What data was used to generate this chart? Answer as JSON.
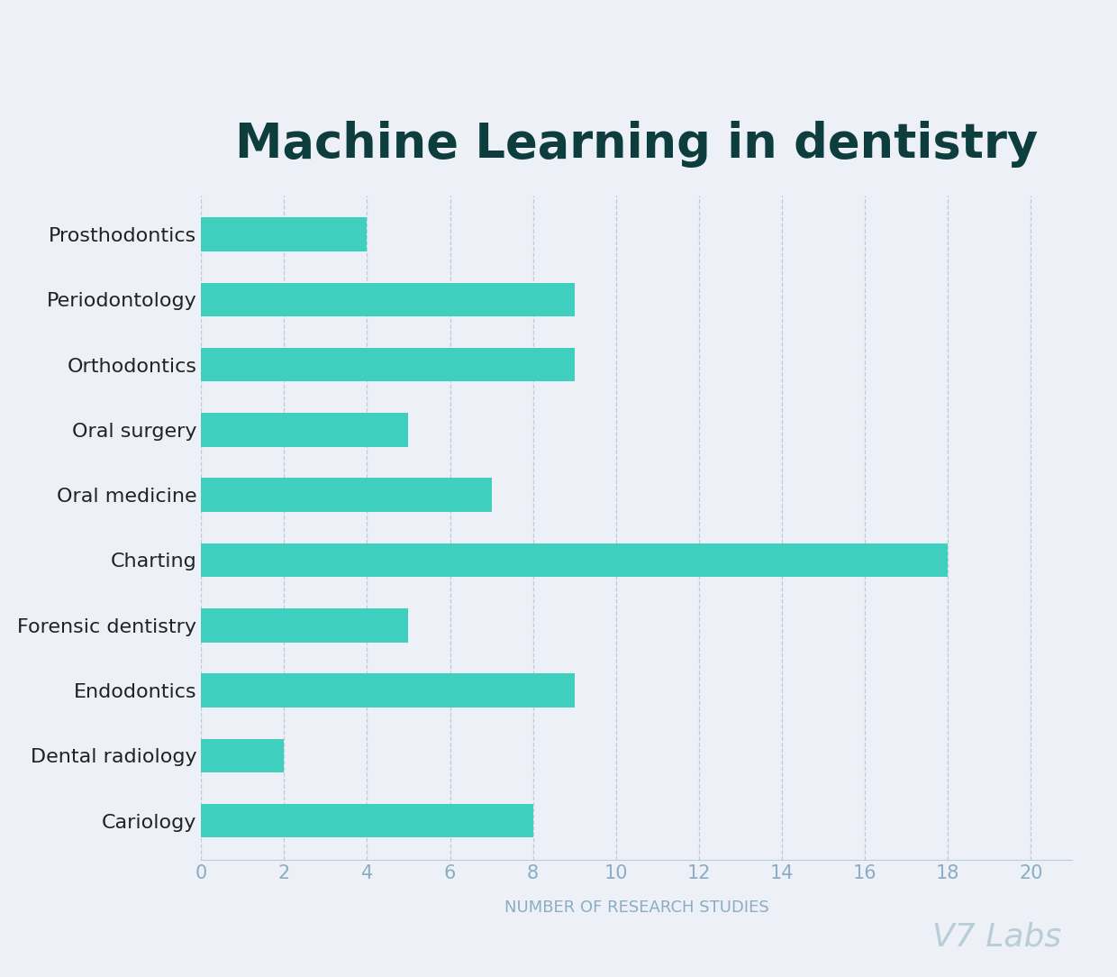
{
  "title": "Machine Learning in dentistry",
  "title_color": "#0d3d3d",
  "title_fontsize": 38,
  "title_fontweight": "bold",
  "background_color": "#edf1f7",
  "bar_color": "#3ecfbe",
  "categories": [
    "Prosthodontics",
    "Periodontology",
    "Orthodontics",
    "Oral surgery",
    "Oral medicine",
    "Charting",
    "Forensic dentistry",
    "Endodontics",
    "Dental radiology",
    "Cariology"
  ],
  "values": [
    4,
    9,
    9,
    5,
    7,
    18,
    5,
    9,
    2,
    8
  ],
  "xlabel": "NUMBER OF RESEARCH STUDIES",
  "xlabel_color": "#8aadc4",
  "xlabel_fontsize": 13,
  "ylabel_color": "#8aadc4",
  "ylabel_fontsize": 13,
  "xlim": [
    0,
    21
  ],
  "xticks": [
    0,
    2,
    4,
    6,
    8,
    10,
    12,
    14,
    16,
    18,
    20
  ],
  "tick_color": "#8aadc4",
  "tick_fontsize": 15,
  "ytick_fontsize": 16,
  "ytick_color": "#222222",
  "grid_color": "#b8cdd8",
  "grid_linewidth": 0.9,
  "bar_height": 0.52,
  "watermark": "V7 Labs",
  "watermark_color": "#b8cdd8",
  "watermark_fontsize": 26
}
